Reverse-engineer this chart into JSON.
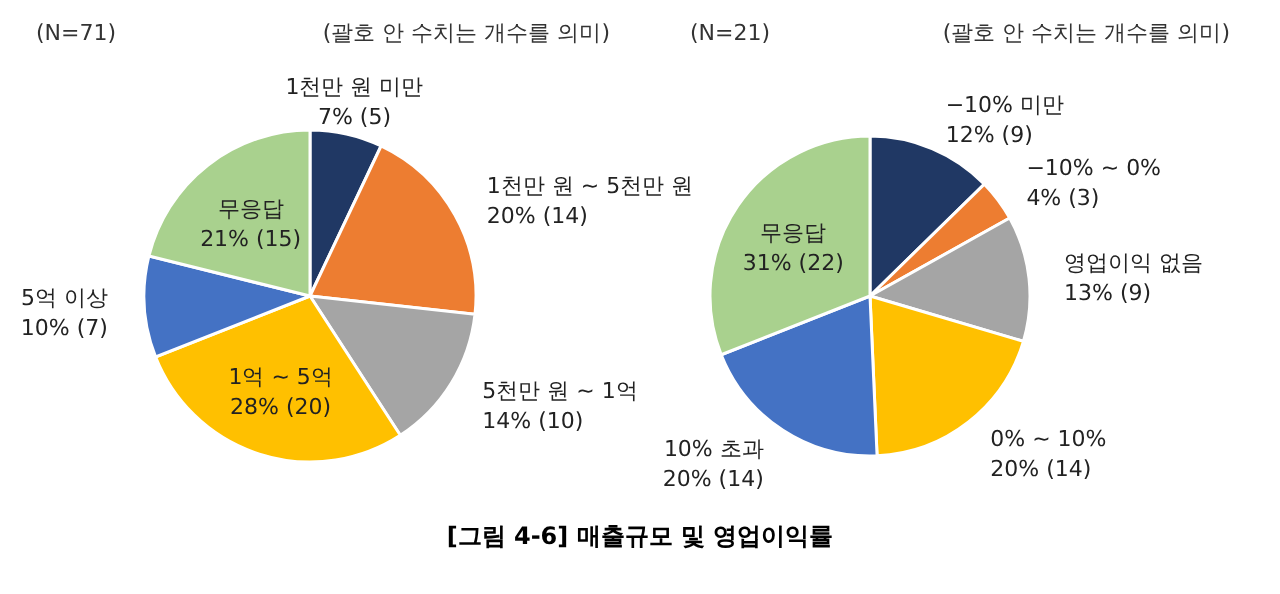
{
  "chart_data": [
    {
      "type": "pie",
      "annotations": [
        "(N=71)",
        "(괄호 안 수치는 개수를 의미)",
        "[그림 4-6] 매출규모 및 영업이익률"
      ],
      "categories": [
        "1천만 원 미만",
        "1천만 원 ~ 5천만 원",
        "5천만 원 ~ 1억",
        "1억 ~ 5억",
        "5억 이상",
        "무응답"
      ],
      "values": [
        5,
        14,
        10,
        20,
        7,
        15
      ],
      "value_labels": [
        "7% (5)",
        "20% (14)",
        "14% (10)",
        "28% (20)",
        "10% (7)",
        "21% (15)"
      ],
      "colors": [
        "#203864",
        "#ed7d31",
        "#a5a5a5",
        "#ffc000",
        "#4472c4",
        "#a9d18e"
      ]
    },
    {
      "type": "pie",
      "annotations": [
        "(N=21)",
        "(괄호 안 수치는 개수를 의미)"
      ],
      "categories": [
        "−10% 미만",
        "−10% ~ 0%",
        "영업이익 없음",
        "0% ~ 10%",
        "10% 초과",
        "무응답"
      ],
      "values": [
        9,
        3,
        9,
        14,
        14,
        22
      ],
      "value_labels": [
        "12% (9)",
        "4% (3)",
        "13% (9)",
        "20% (14)",
        "20% (14)",
        "31% (22)"
      ],
      "colors": [
        "#203864",
        "#ed7d31",
        "#a5a5a5",
        "#ffc000",
        "#4472c4",
        "#a9d18e"
      ]
    }
  ]
}
